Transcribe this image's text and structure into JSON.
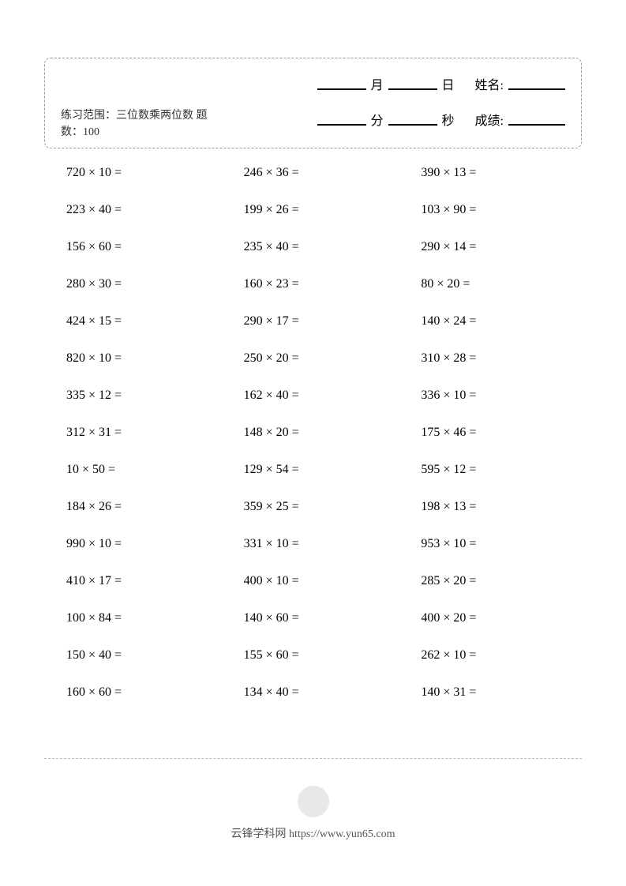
{
  "header": {
    "month_label": "月",
    "day_label": "日",
    "name_label": "姓名:",
    "minute_label": "分",
    "second_label": "秒",
    "score_label": "成绩:",
    "description": "练习范围：三位数乘两位数  题数：100"
  },
  "problems": [
    [
      "720 × 10 =",
      "246 × 36 =",
      "390 × 13 ="
    ],
    [
      "223 × 40 =",
      "199 × 26 =",
      "103 × 90 ="
    ],
    [
      "156 × 60 =",
      "235 × 40 =",
      "290 × 14 ="
    ],
    [
      "280 × 30 =",
      "160 × 23 =",
      "80 × 20 ="
    ],
    [
      "424 × 15 =",
      "290 × 17 =",
      "140 × 24 ="
    ],
    [
      "820 × 10 =",
      "250 × 20 =",
      "310 × 28 ="
    ],
    [
      "335 × 12 =",
      "162 × 40 =",
      "336 × 10 ="
    ],
    [
      "312 × 31 =",
      "148 × 20 =",
      "175 × 46 ="
    ],
    [
      "10 × 50 =",
      "129 × 54 =",
      "595 × 12 ="
    ],
    [
      "184 × 26 =",
      "359 × 25 =",
      "198 × 13 ="
    ],
    [
      "990 × 10 =",
      "331 × 10 =",
      "953 × 10 ="
    ],
    [
      "410 × 17 =",
      "400 × 10 =",
      "285 × 20 ="
    ],
    [
      "100 × 84 =",
      "140 × 60 =",
      "400 × 20 ="
    ],
    [
      "150 × 40 =",
      "155 × 60 =",
      "262 × 10 ="
    ],
    [
      "160 × 60 =",
      "134 × 40 =",
      "140 × 31 ="
    ]
  ],
  "footer": {
    "text": "云锋学科网 https://www.yun65.com"
  }
}
